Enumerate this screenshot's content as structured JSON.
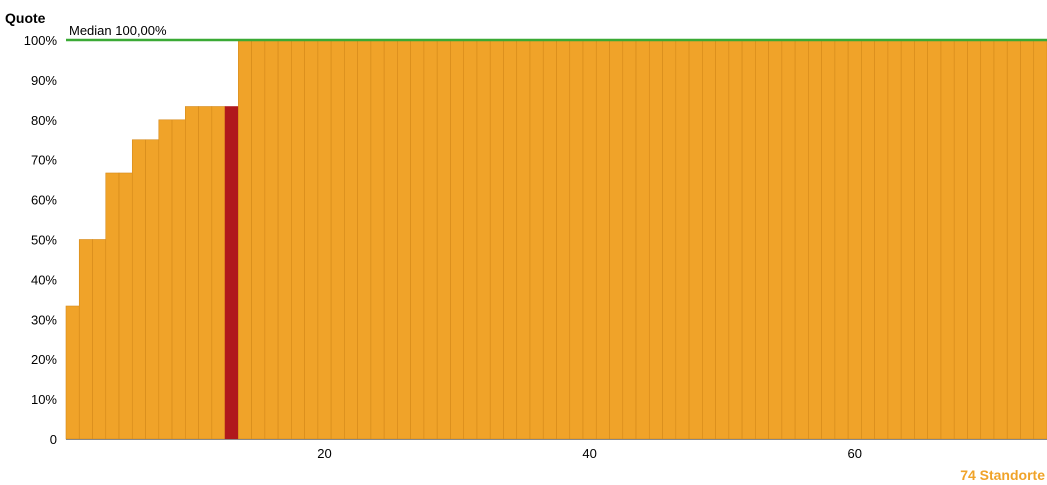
{
  "chart_data": {
    "type": "bar",
    "ylabel": "Quote",
    "xlabel": "74 Standorte",
    "ylim": [
      0,
      100
    ],
    "yticks": [
      "0",
      "10%",
      "20%",
      "30%",
      "40%",
      "50%",
      "60%",
      "70%",
      "80%",
      "90%",
      "100%"
    ],
    "xticks": [
      "20",
      "40",
      "60"
    ],
    "xtick_values": [
      20,
      40,
      60
    ],
    "n_bars": 74,
    "values": [
      33.33,
      50,
      50,
      66.67,
      66.67,
      75,
      75,
      80,
      80,
      83.33,
      83.33,
      83.33,
      83.33,
      100,
      100,
      100,
      100,
      100,
      100,
      100,
      100,
      100,
      100,
      100,
      100,
      100,
      100,
      100,
      100,
      100,
      100,
      100,
      100,
      100,
      100,
      100,
      100,
      100,
      100,
      100,
      100,
      100,
      100,
      100,
      100,
      100,
      100,
      100,
      100,
      100,
      100,
      100,
      100,
      100,
      100,
      100,
      100,
      100,
      100,
      100,
      100,
      100,
      100,
      100,
      100,
      100,
      100,
      100,
      100,
      100,
      100,
      100,
      100,
      100
    ],
    "highlight_index": 12,
    "median": {
      "value": 100,
      "label": "Median 100,00%"
    },
    "grid": false,
    "colors": {
      "bar": "#f0a329",
      "bar_edge": "#d4891a",
      "highlight": "#b0181c",
      "median_line": "#3aaa35",
      "xlabel": "#f0a329"
    }
  }
}
